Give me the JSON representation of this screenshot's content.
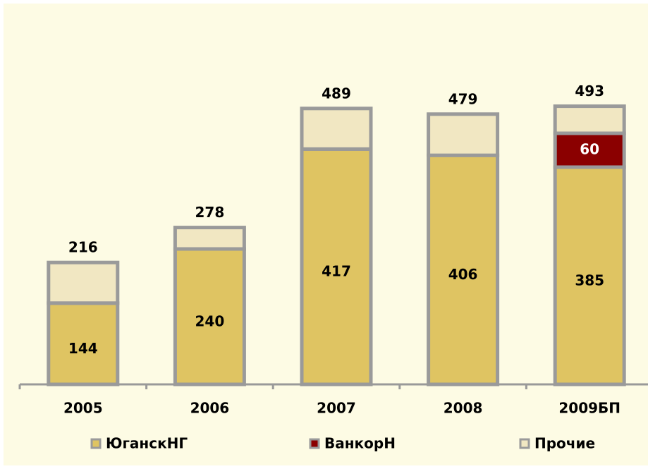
{
  "chart_data": {
    "type": "bar",
    "stacked": true,
    "categories": [
      "2005",
      "2006",
      "2007",
      "2008",
      "2009БП"
    ],
    "series": [
      {
        "name": "ЮганскНГ",
        "color": "#dfc462",
        "values": [
          144,
          240,
          417,
          406,
          385
        ]
      },
      {
        "name": "ВанкорН",
        "color": "#8b0000",
        "values": [
          null,
          null,
          null,
          null,
          60
        ]
      },
      {
        "name": "Прочие",
        "color": "#f1e7c2",
        "values": [
          72,
          38,
          72,
          73,
          48
        ]
      }
    ],
    "totals": [
      216,
      278,
      489,
      479,
      493
    ],
    "ylim": [
      0,
      600
    ]
  }
}
